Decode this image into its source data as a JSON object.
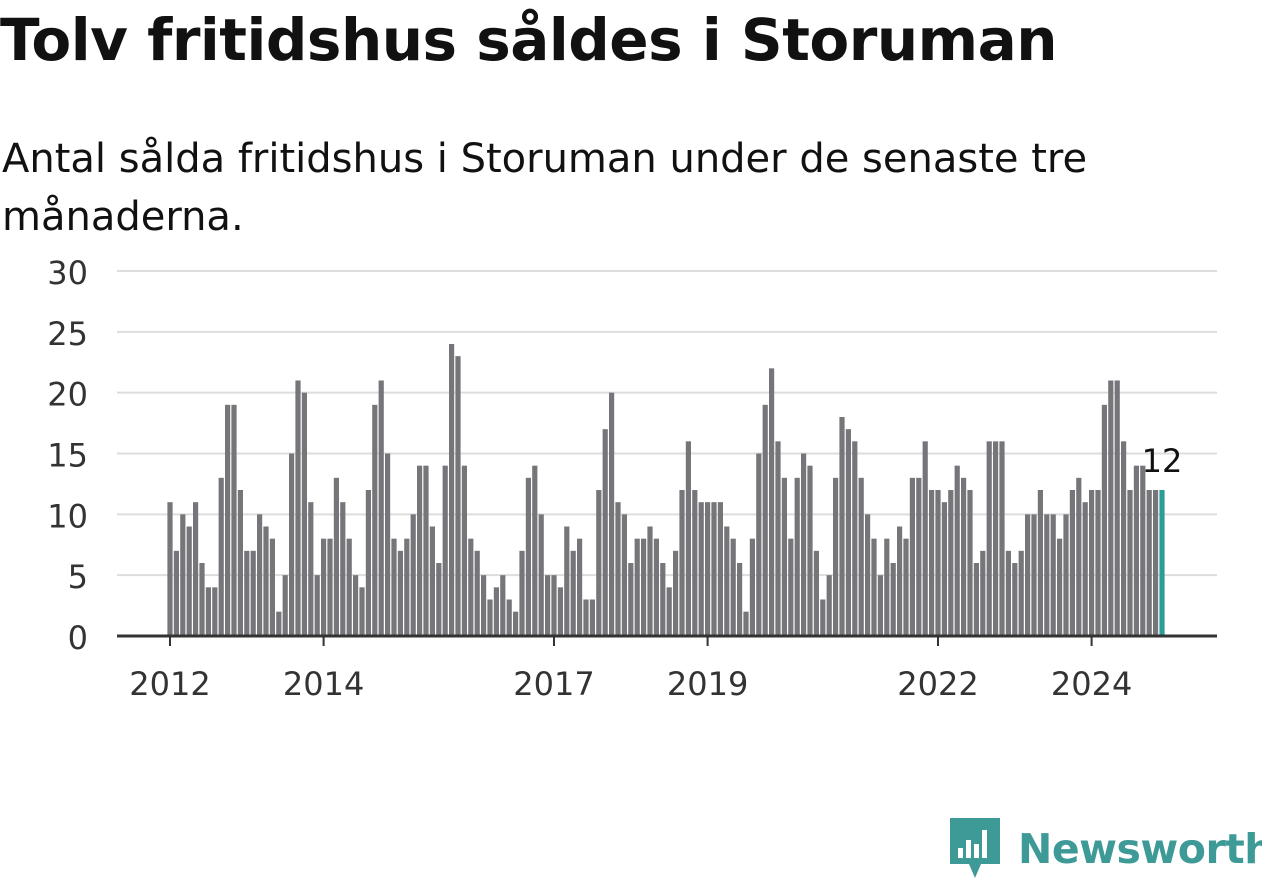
{
  "title": "Tolv fritidshus såldes i Storuman",
  "subtitle": "Antal sålda fritidshus i Storuman under de senaste tre månaderna.",
  "brand": {
    "name": "Newsworthy",
    "icon": "newsworthy-logo-icon",
    "color": "#3e9a97"
  },
  "chart_data": {
    "type": "bar",
    "title": "Tolv fritidshus såldes i Storuman",
    "subtitle": "Antal sålda fritidshus i Storuman under de senaste tre månaderna.",
    "xlabel": "",
    "ylabel": "",
    "ylim": [
      0,
      30
    ],
    "yticks": [
      0,
      5,
      10,
      15,
      20,
      25,
      30
    ],
    "xticks": [
      "2012",
      "2014",
      "2017",
      "2019",
      "2022",
      "2024"
    ],
    "grid": true,
    "colors": {
      "bar": "#76757a",
      "highlight": "#2a9d96",
      "grid": "#dddddd",
      "axis": "#333333"
    },
    "last_label": "12",
    "start": "2012-01",
    "end": "2025-07",
    "values": [
      11,
      7,
      10,
      9,
      11,
      6,
      4,
      4,
      13,
      19,
      19,
      12,
      7,
      7,
      10,
      9,
      8,
      2,
      5,
      15,
      21,
      20,
      11,
      5,
      8,
      8,
      13,
      11,
      8,
      5,
      4,
      12,
      19,
      21,
      15,
      8,
      7,
      8,
      10,
      14,
      14,
      9,
      6,
      14,
      24,
      23,
      14,
      8,
      7,
      5,
      3,
      4,
      5,
      3,
      2,
      7,
      13,
      14,
      10,
      5,
      5,
      4,
      9,
      7,
      8,
      3,
      3,
      12,
      17,
      20,
      11,
      10,
      6,
      8,
      8,
      9,
      8,
      6,
      4,
      7,
      12,
      16,
      12,
      11,
      11,
      11,
      11,
      9,
      8,
      6,
      2,
      8,
      15,
      19,
      22,
      16,
      13,
      8,
      13,
      15,
      14,
      7,
      3,
      5,
      13,
      18,
      17,
      16,
      13,
      10,
      8,
      5,
      8,
      6,
      9,
      8,
      13,
      13,
      16,
      12,
      12,
      11,
      12,
      14,
      13,
      12,
      6,
      7,
      16,
      16,
      16,
      7,
      6,
      7,
      10,
      10,
      12,
      10,
      10,
      8,
      10,
      12,
      13,
      11,
      12,
      12,
      19,
      21,
      21,
      16,
      12,
      14,
      14,
      12,
      12,
      12
    ]
  }
}
